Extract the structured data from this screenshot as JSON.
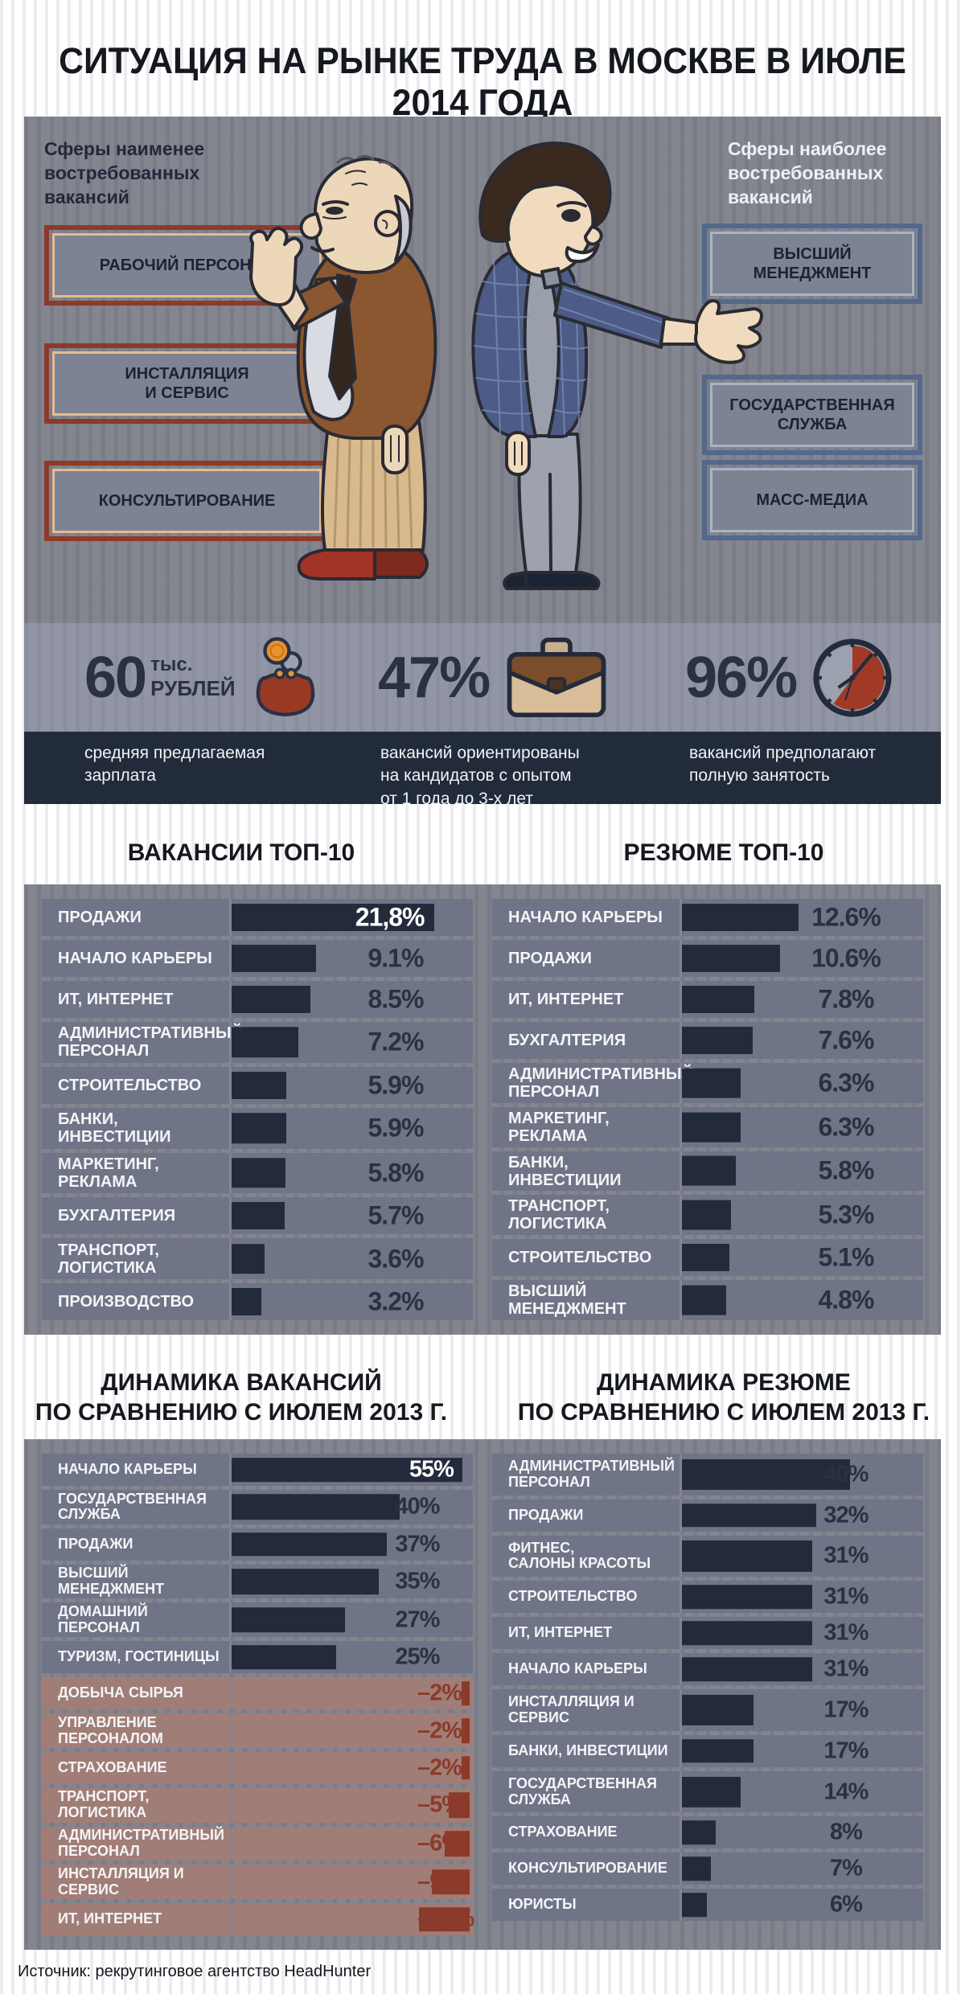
{
  "page": {
    "title": "СИТУАЦИЯ НА РЫНКЕ ТРУДА В МОСКВЕ В ИЮЛЕ 2014 ГОДА",
    "source": "Источник: рекрутинговое агентство HeadHunter"
  },
  "colors": {
    "panel": "#83858F",
    "row": "#6F7487",
    "bar": "#232B3B",
    "value": "#2A3141",
    "red": "#8C3A2A",
    "neg-row": "#A17D77",
    "band-dark": "#222B3A",
    "band-light": "#9296A4",
    "title": "#15181F",
    "cream": "#E2BC90",
    "blue-border": "#54688C",
    "blue-inner": "#A8B4C6"
  },
  "hero": {
    "left_heading": "Сферы наименее\nвостребованных\nвакансий",
    "right_heading": "Сферы наиболее\nвостребованных\nвакансий",
    "left_boxes": [
      "РАБОЧИЙ ПЕРСОНАЛ",
      "ИНСТАЛЛЯЦИЯ\nИ СЕРВИС",
      "КОНСУЛЬТИРОВАНИЕ"
    ],
    "right_boxes": [
      "ВЫСШИЙ\nМЕНЕДЖМЕНТ",
      "ГОСУДАРСТВЕННАЯ\nСЛУЖБА",
      "МАСС-МЕДИА"
    ]
  },
  "stats": [
    {
      "value": "60",
      "unit_top": "тыс.",
      "unit_bottom": "РУБЛЕЙ",
      "icon": "purse-icon",
      "caption": "средняя предлагаемая\nзарплата"
    },
    {
      "value": "47%",
      "icon": "briefcase-icon",
      "caption": "вакансий ориентированы\nна кандидатов с опытом\nот 1 года до 3-х лет"
    },
    {
      "value": "96%",
      "icon": "clock-icon",
      "caption": "вакансий предполагают\nполную занятость"
    }
  ],
  "chart_data": [
    {
      "type": "bar",
      "title": "ВАКАНСИИ ТОП-10",
      "orientation": "horizontal",
      "unit": "%",
      "xlim": [
        0,
        26
      ],
      "grid": false,
      "categories": [
        "ПРОДАЖИ",
        "НАЧАЛО КАРЬЕРЫ",
        "ИТ, ИНТЕРНЕТ",
        "АДМИНИСТРАТИВНЫЙ\nПЕРСОНАЛ",
        "СТРОИТЕЛЬСТВО",
        "БАНКИ, ИНВЕСТИЦИИ",
        "МАРКЕТИНГ, РЕКЛАМА",
        "БУХГАЛТЕРИЯ",
        "ТРАНСПОРТ, ЛОГИСТИКА",
        "ПРОИЗВОДСТВО"
      ],
      "values": [
        21.8,
        9.1,
        8.5,
        7.2,
        5.9,
        5.9,
        5.8,
        5.7,
        3.6,
        3.2
      ],
      "value_labels": [
        "21,8%",
        "9.1%",
        "8.5%",
        "7.2%",
        "5.9%",
        "5.9%",
        "5.8%",
        "5.7%",
        "3.6%",
        "3.2%"
      ]
    },
    {
      "type": "bar",
      "title": "РЕЗЮМЕ ТОП-10",
      "orientation": "horizontal",
      "unit": "%",
      "xlim": [
        0,
        26
      ],
      "grid": false,
      "categories": [
        "НАЧАЛО КАРЬЕРЫ",
        "ПРОДАЖИ",
        "ИТ, ИНТЕРНЕТ",
        "БУХГАЛТЕРИЯ",
        "АДМИНИСТРАТИВНЫЙ\nПЕРСОНАЛ",
        "МАРКЕТИНГ, РЕКЛАМА",
        "БАНКИ, ИНВЕСТИЦИИ",
        "ТРАНСПОРТ, ЛОГИСТИКА",
        "СТРОИТЕЛЬСТВО",
        "ВЫСШИЙ МЕНЕДЖМЕНТ"
      ],
      "values": [
        12.6,
        10.6,
        7.8,
        7.6,
        6.3,
        6.3,
        5.8,
        5.3,
        5.1,
        4.8
      ],
      "value_labels": [
        "12.6%",
        "10.6%",
        "7.8%",
        "7.6%",
        "6.3%",
        "6.3%",
        "5.8%",
        "5.3%",
        "5.1%",
        "4.8%"
      ]
    },
    {
      "type": "bar",
      "title": "ДИНАМИКА ВАКАНСИЙ\nПО СРАВНЕНИЮ С ИЮЛЕМ 2013 Г.",
      "orientation": "horizontal",
      "unit": "%",
      "xlim": [
        -12,
        57.5
      ],
      "grid": false,
      "categories": [
        "НАЧАЛО КАРЬЕРЫ",
        "ГОСУДАРСТВЕННАЯ\nСЛУЖБА",
        "ПРОДАЖИ",
        "ВЫСШИЙ МЕНЕДЖМЕНТ",
        "ДОМАШНИЙ ПЕРСОНАЛ",
        "ТУРИЗМ, ГОСТИНИЦЫ",
        "ДОБЫЧА СЫРЬЯ",
        "УПРАВЛЕНИЕ\nПЕРСОНАЛОМ",
        "СТРАХОВАНИЕ",
        "ТРАНСПОРТ, ЛОГИСТИКА",
        "АДМИНИСТРАТИВНЫЙ\nПЕРСОНАЛ",
        "ИНСТАЛЛЯЦИЯ И СЕРВИС",
        "ИТ, ИНТЕРНЕТ"
      ],
      "values": [
        55,
        40,
        37,
        35,
        27,
        25,
        -2,
        -2,
        -2,
        -5,
        -6,
        -9,
        -12
      ],
      "value_labels": [
        "55%",
        "40%",
        "37%",
        "35%",
        "27%",
        "25%",
        "–2%",
        "–2%",
        "–2%",
        "–5%",
        "–6%",
        "–9%",
        "–12%"
      ]
    },
    {
      "type": "bar",
      "title": "ДИНАМИКА РЕЗЮМЕ\nПО СРАВНЕНИЮ С ИЮЛЕМ 2013 Г.",
      "orientation": "horizontal",
      "unit": "%",
      "xlim": [
        0,
        57.5
      ],
      "grid": false,
      "categories": [
        "АДМИНИСТРАТИВНЫЙ\nПЕРСОНАЛ",
        "ПРОДАЖИ",
        "ФИТНЕС,\nСАЛОНЫ КРАСОТЫ",
        "СТРОИТЕЛЬСТВО",
        "ИТ, ИНТЕРНЕТ",
        "НАЧАЛО КАРЬЕРЫ",
        "ИНСТАЛЛЯЦИЯ И СЕРВИС",
        "БАНКИ, ИНВЕСТИЦИИ",
        "ГОСУДАРСТВЕННАЯ\nСЛУЖБА",
        "СТРАХОВАНИЕ",
        "КОНСУЛЬТИРОВАНИЕ",
        "ЮРИСТЫ"
      ],
      "values": [
        40,
        32,
        31,
        31,
        31,
        31,
        17,
        17,
        14,
        8,
        7,
        6
      ],
      "value_labels": [
        "40%",
        "32%",
        "31%",
        "31%",
        "31%",
        "31%",
        "17%",
        "17%",
        "14%",
        "8%",
        "7%",
        "6%"
      ]
    }
  ]
}
